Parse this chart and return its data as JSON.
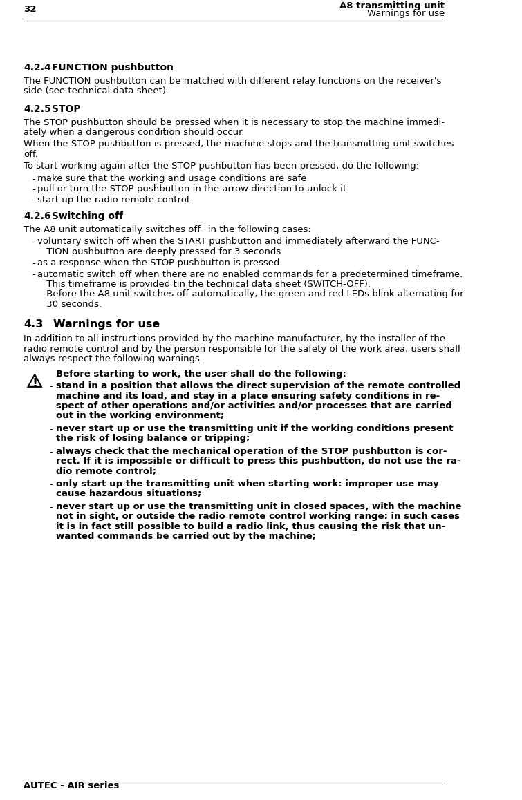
{
  "page_number": "32",
  "header_right_line1": "A8 transmitting unit",
  "header_right_line2": "Warnings for use",
  "footer_left": "AUTEC - AIR series",
  "bg_color": "#ffffff",
  "text_color": "#000000",
  "sections": [
    {
      "type": "heading2",
      "text": "4.2.4  FUNCTION pushbutton"
    },
    {
      "type": "body",
      "text": "The FUNCTION pushbutton can be matched with different relay functions on the receiver's\nside (see technical data sheet)."
    },
    {
      "type": "heading2",
      "text": "4.2.5  STOP"
    },
    {
      "type": "body",
      "text": "The STOP pushbutton should be pressed when it is necessary to stop the machine immedi-\nately when a dangerous condition should occur."
    },
    {
      "type": "body",
      "text": "When the STOP pushbutton is pressed, the machine stops and the transmitting unit switches\noff."
    },
    {
      "type": "body",
      "text": "To start working again after the STOP pushbutton has been pressed, do the following:"
    },
    {
      "type": "bullet",
      "text": "make sure that the working and usage conditions are safe"
    },
    {
      "type": "bullet",
      "text": "pull or turn the STOP pushbutton in the arrow direction to unlock it"
    },
    {
      "type": "bullet",
      "text": "start up the radio remote control."
    },
    {
      "type": "heading2",
      "text": "4.2.6  Switching off"
    },
    {
      "type": "body",
      "text": "The A8 unit automatically switches off  in the following cases:"
    },
    {
      "type": "bullet_cont",
      "text": "voluntary switch off when the START pushbutton and immediately afterward the FUNC-\n TION pushbutton are deeply pressed for 3 seconds"
    },
    {
      "type": "bullet_cont",
      "text": "as a response when the STOP pushbutton is pressed"
    },
    {
      "type": "bullet_cont",
      "text": "automatic switch off when there are no enabled commands for a predetermined timeframe.\n This timeframe is provided tin the technical data sheet (SWITCH-OFF).\n Before the A8 unit switches off automatically, the green and red LEDs blink alternating for\n 30 seconds."
    },
    {
      "type": "heading1",
      "text": "4.3   Warnings for use"
    },
    {
      "type": "body",
      "text": "In addition to all instructions provided by the machine manufacturer, by the installer of the\nradio remote control and by the person responsible for the safety of the work area, users shall\nalways respect the following warnings."
    },
    {
      "type": "warning_heading",
      "text": "Before starting to work, the user shall do the following:"
    },
    {
      "type": "warning_bullet",
      "text": "stand in a position that allows the direct supervision of the remote controlled\nmachine and its load, and stay in a place ensuring safety conditions in re-\nspect of other operations and/or activities and/or processes that are carried\nout in the working environment;"
    },
    {
      "type": "warning_bullet",
      "text": "never start up or use the transmitting unit if the working conditions present\nthe risk of losing balance or tripping;"
    },
    {
      "type": "warning_bullet",
      "text": "always check that the mechanical operation of the STOP pushbutton is cor-\nrect. If it is impossible or difficult to press this pushbutton, do not use the ra-\ndio remote control;"
    },
    {
      "type": "warning_bullet",
      "text": "only start up the transmitting unit when starting work: improper use may\ncause hazardous situations;"
    },
    {
      "type": "warning_bullet",
      "text": "never start up or use the transmitting unit in closed spaces, with the machine\nnot in sight, or outside the radio remote control working range: in such cases\nit is in fact still possible to build a radio link, thus causing the risk that un-\nwanted commands be carried out by the machine;"
    }
  ]
}
